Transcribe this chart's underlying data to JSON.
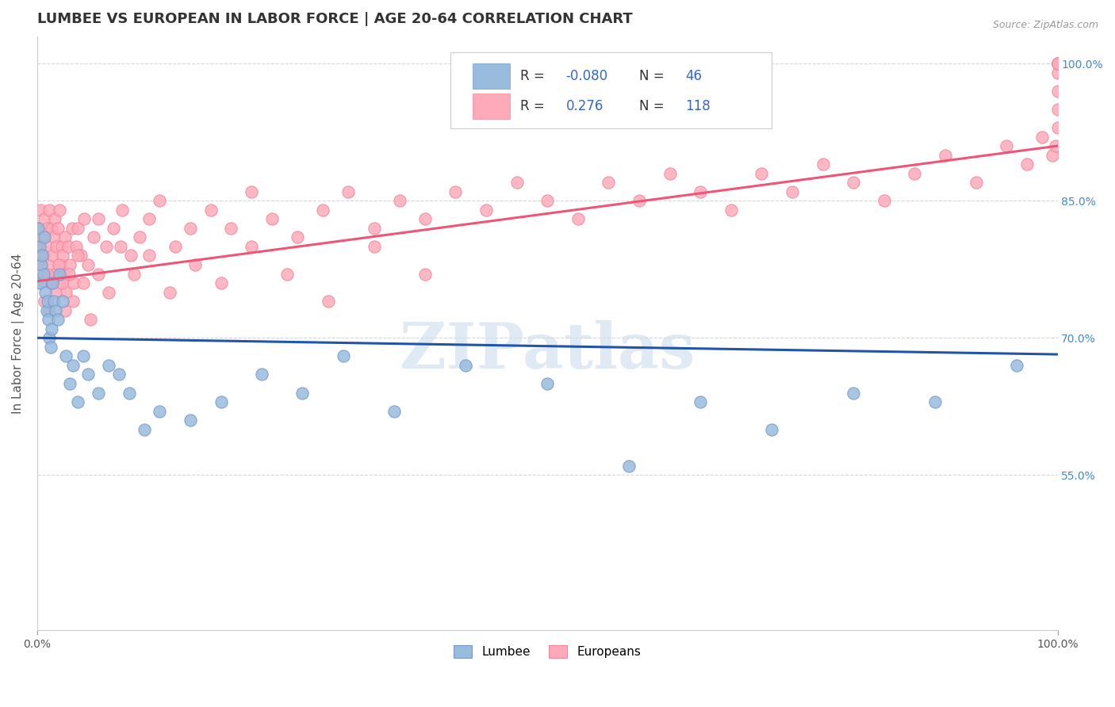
{
  "title": "LUMBEE VS EUROPEAN IN LABOR FORCE | AGE 20-64 CORRELATION CHART",
  "source_text": "Source: ZipAtlas.com",
  "ylabel": "In Labor Force | Age 20-64",
  "watermark": "ZIPatlas",
  "xlim": [
    0.0,
    1.0
  ],
  "ylim": [
    0.38,
    1.03
  ],
  "xticklabels": [
    "0.0%",
    "100.0%"
  ],
  "yticklabels_right": [
    "55.0%",
    "70.0%",
    "85.0%",
    "100.0%"
  ],
  "yticks_right": [
    0.55,
    0.7,
    0.85,
    1.0
  ],
  "lumbee_R": -0.08,
  "lumbee_N": 46,
  "euro_R": 0.276,
  "euro_N": 118,
  "lumbee_color": "#99BBDD",
  "lumbee_edge_color": "#7799CC",
  "lumbee_line_color": "#2255AA",
  "euro_color": "#FFAABB",
  "euro_edge_color": "#EE8899",
  "euro_line_color": "#EE5577",
  "legend_lumbee_label": "Lumbee",
  "legend_euro_label": "Europeans",
  "background_color": "#FFFFFF",
  "grid_color": "#CCCCCC",
  "title_fontsize": 13,
  "axis_label_fontsize": 11,
  "tick_fontsize": 10,
  "lumbee_x": [
    0.001,
    0.002,
    0.003,
    0.004,
    0.005,
    0.006,
    0.007,
    0.008,
    0.009,
    0.01,
    0.011,
    0.012,
    0.013,
    0.014,
    0.015,
    0.016,
    0.018,
    0.02,
    0.022,
    0.025,
    0.028,
    0.032,
    0.035,
    0.04,
    0.045,
    0.05,
    0.06,
    0.07,
    0.08,
    0.09,
    0.105,
    0.12,
    0.15,
    0.18,
    0.22,
    0.26,
    0.3,
    0.35,
    0.42,
    0.5,
    0.58,
    0.65,
    0.72,
    0.8,
    0.88,
    0.96
  ],
  "lumbee_y": [
    0.82,
    0.8,
    0.76,
    0.78,
    0.79,
    0.77,
    0.81,
    0.75,
    0.73,
    0.74,
    0.72,
    0.7,
    0.69,
    0.71,
    0.76,
    0.74,
    0.73,
    0.72,
    0.77,
    0.74,
    0.68,
    0.65,
    0.67,
    0.63,
    0.68,
    0.66,
    0.64,
    0.67,
    0.66,
    0.64,
    0.6,
    0.62,
    0.61,
    0.63,
    0.66,
    0.64,
    0.68,
    0.62,
    0.67,
    0.65,
    0.56,
    0.63,
    0.6,
    0.64,
    0.63,
    0.67
  ],
  "euro_x": [
    0.001,
    0.002,
    0.003,
    0.004,
    0.005,
    0.006,
    0.007,
    0.008,
    0.009,
    0.01,
    0.011,
    0.012,
    0.013,
    0.014,
    0.015,
    0.016,
    0.017,
    0.018,
    0.019,
    0.02,
    0.021,
    0.022,
    0.023,
    0.024,
    0.025,
    0.026,
    0.027,
    0.028,
    0.03,
    0.032,
    0.034,
    0.036,
    0.038,
    0.04,
    0.043,
    0.046,
    0.05,
    0.055,
    0.06,
    0.068,
    0.075,
    0.083,
    0.092,
    0.1,
    0.11,
    0.12,
    0.135,
    0.15,
    0.17,
    0.19,
    0.21,
    0.23,
    0.255,
    0.28,
    0.305,
    0.33,
    0.355,
    0.38,
    0.41,
    0.44,
    0.47,
    0.5,
    0.53,
    0.56,
    0.59,
    0.62,
    0.65,
    0.68,
    0.71,
    0.74,
    0.77,
    0.8,
    0.83,
    0.86,
    0.89,
    0.92,
    0.95,
    0.97,
    0.985,
    0.995,
    0.998,
    1.0,
    1.0,
    1.0,
    1.0,
    1.0,
    1.0,
    1.0,
    1.0,
    1.0,
    0.003,
    0.005,
    0.007,
    0.01,
    0.012,
    0.015,
    0.018,
    0.021,
    0.024,
    0.027,
    0.031,
    0.035,
    0.04,
    0.045,
    0.052,
    0.06,
    0.07,
    0.082,
    0.095,
    0.11,
    0.13,
    0.155,
    0.18,
    0.21,
    0.245,
    0.285,
    0.33,
    0.38
  ],
  "euro_y": [
    0.82,
    0.8,
    0.84,
    0.78,
    0.81,
    0.79,
    0.83,
    0.77,
    0.82,
    0.8,
    0.78,
    0.84,
    0.76,
    0.82,
    0.79,
    0.81,
    0.83,
    0.77,
    0.8,
    0.82,
    0.76,
    0.84,
    0.78,
    0.8,
    0.79,
    0.77,
    0.81,
    0.75,
    0.8,
    0.78,
    0.82,
    0.76,
    0.8,
    0.82,
    0.79,
    0.83,
    0.78,
    0.81,
    0.83,
    0.8,
    0.82,
    0.84,
    0.79,
    0.81,
    0.83,
    0.85,
    0.8,
    0.82,
    0.84,
    0.82,
    0.86,
    0.83,
    0.81,
    0.84,
    0.86,
    0.82,
    0.85,
    0.83,
    0.86,
    0.84,
    0.87,
    0.85,
    0.83,
    0.87,
    0.85,
    0.88,
    0.86,
    0.84,
    0.88,
    0.86,
    0.89,
    0.87,
    0.85,
    0.88,
    0.9,
    0.87,
    0.91,
    0.89,
    0.92,
    0.9,
    0.91,
    0.93,
    0.95,
    0.97,
    0.99,
    1.0,
    1.0,
    1.0,
    1.0,
    1.0,
    0.76,
    0.79,
    0.74,
    0.77,
    0.73,
    0.76,
    0.75,
    0.78,
    0.76,
    0.73,
    0.77,
    0.74,
    0.79,
    0.76,
    0.72,
    0.77,
    0.75,
    0.8,
    0.77,
    0.79,
    0.75,
    0.78,
    0.76,
    0.8,
    0.77,
    0.74,
    0.8,
    0.77
  ]
}
